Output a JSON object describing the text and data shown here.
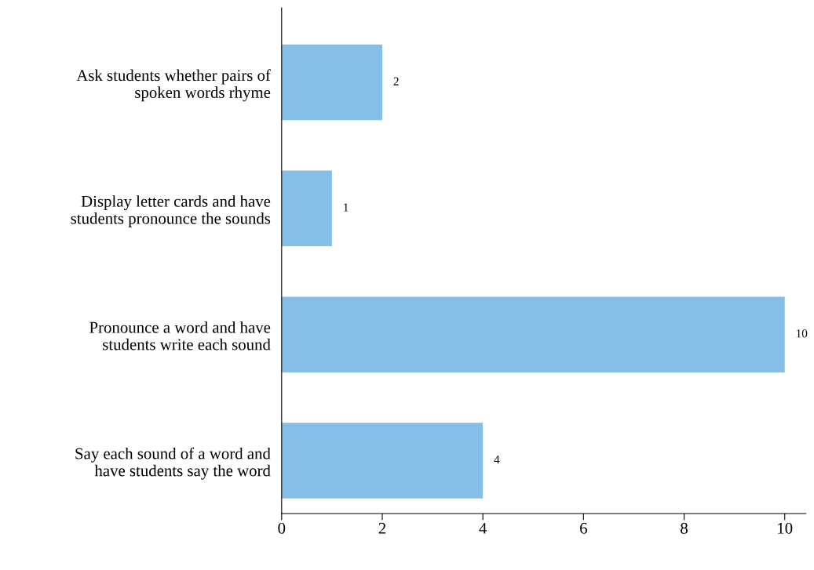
{
  "chart_data": {
    "type": "bar",
    "orientation": "horizontal",
    "categories": [
      "Ask students whether pairs of\nspoken words rhyme",
      "Display letter cards and have\nstudents pronounce the sounds",
      "Pronounce a word and have\nstudents write each sound",
      "Say each sound of a word and\nhave students say the word"
    ],
    "values": [
      2,
      1,
      10,
      4
    ],
    "color": "#85bfe8",
    "xlim": [
      0,
      10.42
    ],
    "xticks": [
      0,
      2,
      4,
      6,
      8,
      10
    ],
    "data_labels": true,
    "grid": false,
    "legend": false
  }
}
